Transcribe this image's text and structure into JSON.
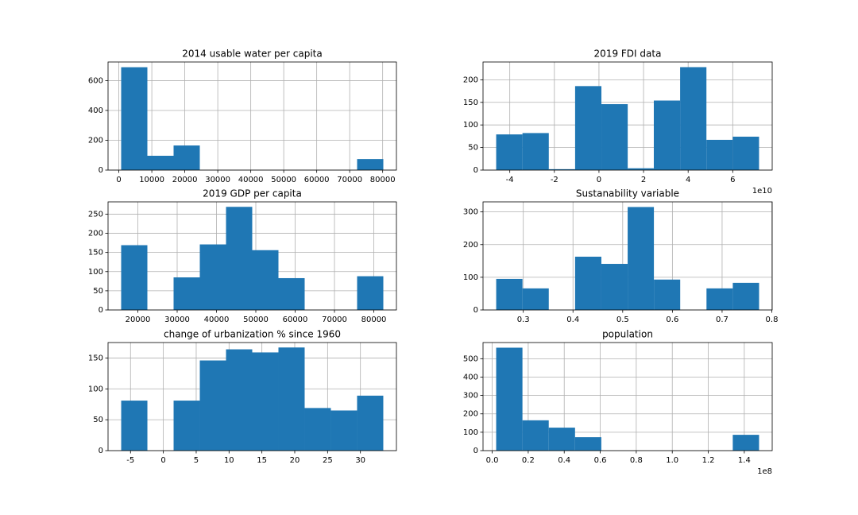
{
  "chart_data": [
    {
      "type": "histogram",
      "title": "2014 usable water per capita",
      "color": "#1f77b4",
      "grid": true,
      "bins": [
        700,
        8650,
        16600,
        24550,
        32500,
        40450,
        48400,
        56350,
        64300,
        72250,
        80200
      ],
      "counts": [
        690,
        96,
        165,
        0,
        0,
        0,
        0,
        0,
        0,
        74
      ],
      "xlim": [
        -3275,
        84175
      ],
      "xticks": [
        0,
        10000,
        20000,
        30000,
        40000,
        50000,
        60000,
        70000,
        80000
      ],
      "ylim": [
        0,
        725
      ],
      "yticks": [
        0,
        200,
        400,
        600
      ]
    },
    {
      "type": "histogram",
      "title": "2019 FDI data",
      "color": "#1f77b4",
      "grid": true,
      "offset_text": "1e10",
      "bins": [
        -4.61,
        -3.43,
        -2.25,
        -1.07,
        0.11,
        1.29,
        2.46,
        3.64,
        4.82,
        6.0,
        7.18
      ],
      "counts": [
        79,
        82,
        2,
        186,
        146,
        4,
        154,
        228,
        67,
        74
      ],
      "xlim": [
        -5.2,
        7.77
      ],
      "xticks": [
        -4,
        -2,
        0,
        2,
        4,
        6
      ],
      "ylim": [
        0,
        239.4
      ],
      "yticks": [
        0,
        50,
        100,
        150,
        200
      ]
    },
    {
      "type": "histogram",
      "title": "2019 GDP per capita",
      "color": "#1f77b4",
      "grid": true,
      "bins": [
        15760,
        22426,
        29092,
        35758,
        42424,
        49090,
        55756,
        62422,
        69088,
        75754,
        82420
      ],
      "counts": [
        169,
        0,
        85,
        171,
        269,
        156,
        83,
        0,
        0,
        88
      ],
      "xlim": [
        12427,
        85753
      ],
      "xticks": [
        20000,
        30000,
        40000,
        50000,
        60000,
        70000,
        80000
      ],
      "ylim": [
        0,
        282
      ],
      "yticks": [
        0,
        50,
        100,
        150,
        200,
        250
      ]
    },
    {
      "type": "histogram",
      "title": "Sustanability variable",
      "color": "#1f77b4",
      "grid": true,
      "bins": [
        0.2455,
        0.2984,
        0.3513,
        0.4042,
        0.4571,
        0.51,
        0.5628,
        0.6157,
        0.6686,
        0.7215,
        0.7744
      ],
      "counts": [
        95,
        66,
        0,
        163,
        141,
        315,
        93,
        0,
        66,
        83
      ],
      "xlim": [
        0.219,
        0.8008
      ],
      "xticks": [
        0.3,
        0.4,
        0.5,
        0.6,
        0.7,
        0.8
      ],
      "ylim": [
        0,
        330.75
      ],
      "yticks": [
        0,
        100,
        200,
        300
      ]
    },
    {
      "type": "histogram",
      "title": "change of urbanization % since 1960",
      "color": "#1f77b4",
      "grid": true,
      "bins": [
        -6.42,
        -2.43,
        1.56,
        5.55,
        9.54,
        13.53,
        17.52,
        21.51,
        25.5,
        29.49,
        33.48
      ],
      "counts": [
        81,
        0,
        81,
        146,
        164,
        159,
        167,
        69,
        65,
        89
      ],
      "xlim": [
        -8.42,
        35.48
      ],
      "xticks": [
        -5,
        0,
        5,
        10,
        15,
        20,
        25,
        30
      ],
      "ylim": [
        0,
        175
      ],
      "yticks": [
        0,
        50,
        100,
        150
      ]
    },
    {
      "type": "histogram",
      "title": "population",
      "color": "#1f77b4",
      "grid": true,
      "offset_text": "1e8",
      "bins": [
        0.022,
        0.168,
        0.314,
        0.46,
        0.606,
        0.752,
        0.898,
        1.044,
        1.19,
        1.336,
        1.482
      ],
      "counts": [
        560,
        165,
        125,
        73,
        0,
        0,
        0,
        0,
        0,
        86
      ],
      "xlim": [
        -0.051,
        1.555
      ],
      "xticks": [
        {
          "value": 0,
          "label": "0.0"
        },
        {
          "value": 0.2,
          "label": "0.2"
        },
        {
          "value": 0.4,
          "label": "0.4"
        },
        {
          "value": 0.6,
          "label": "0.6"
        },
        {
          "value": 0.8,
          "label": "0.8"
        },
        {
          "value": 1.0,
          "label": "1.0"
        },
        {
          "value": 1.2,
          "label": "1.2"
        },
        {
          "value": 1.4,
          "label": "1.4"
        }
      ],
      "ylim": [
        0,
        588
      ],
      "yticks": [
        0,
        100,
        200,
        300,
        400,
        500
      ]
    }
  ]
}
